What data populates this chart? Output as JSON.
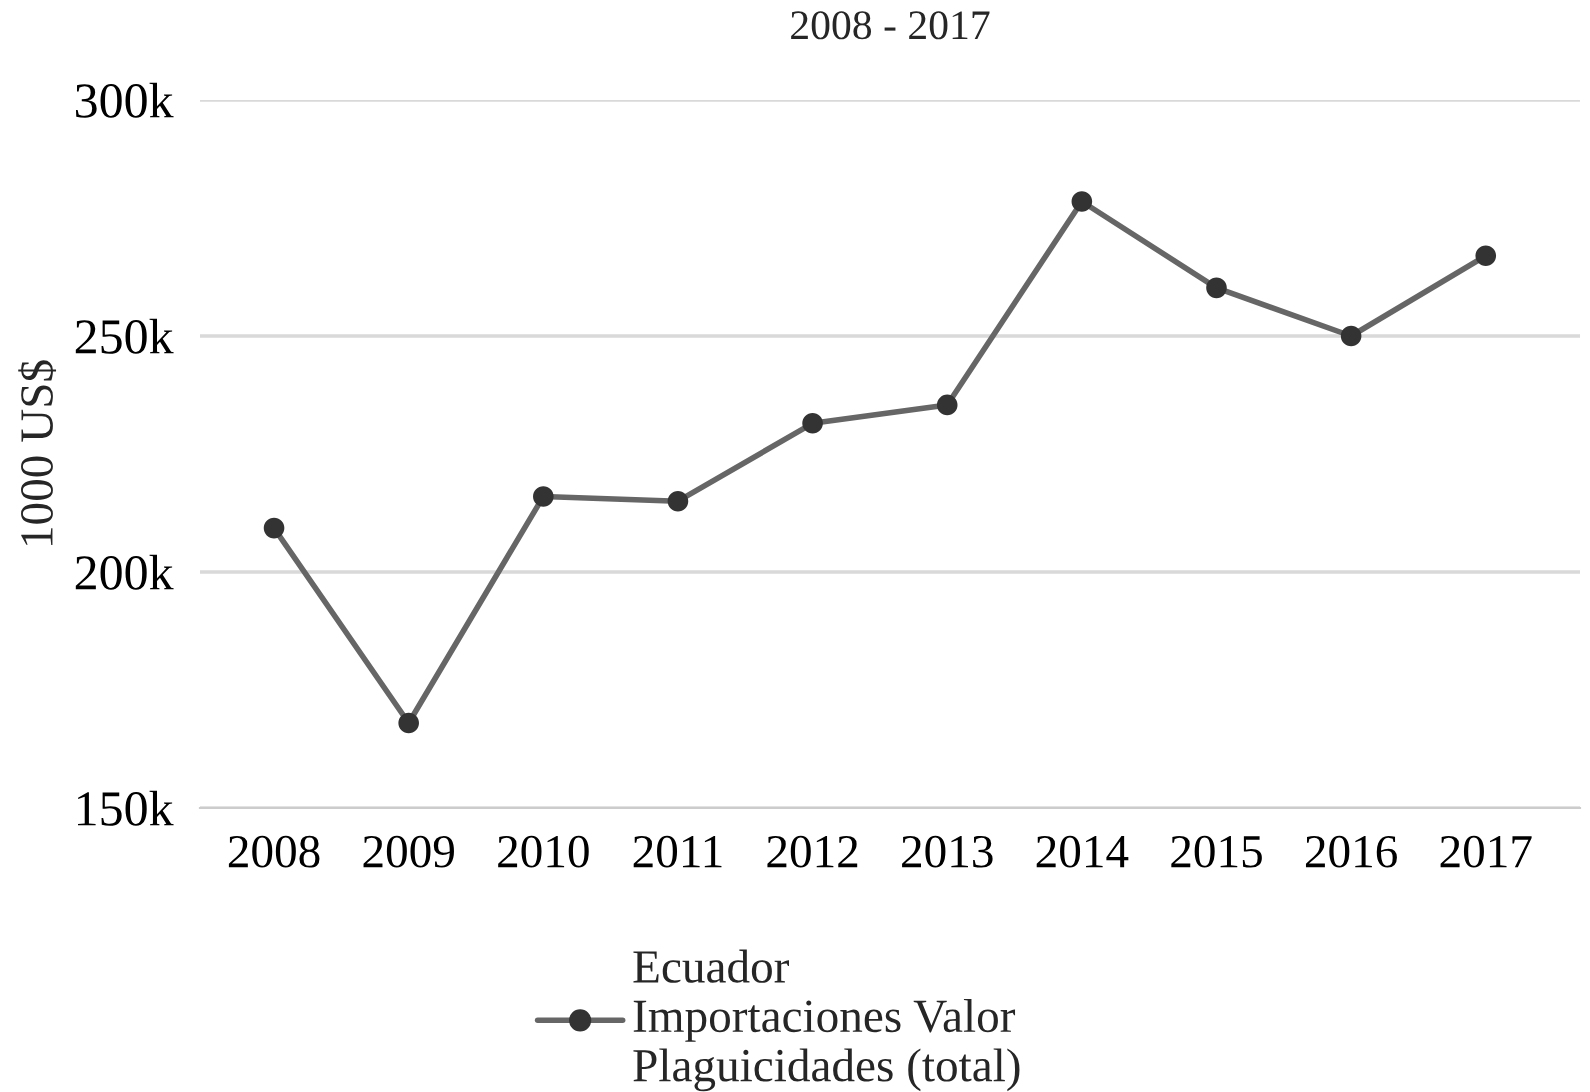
{
  "chart_data": {
    "type": "line",
    "title": "2008 - 2017",
    "ylabel": "1000 US$",
    "categories": [
      "2008",
      "2009",
      "2010",
      "2011",
      "2012",
      "2013",
      "2014",
      "2015",
      "2016",
      "2017"
    ],
    "series": [
      {
        "name": "Ecuador\nImportaciones Valor\nPlaguicidades (total)",
        "color": "#666666",
        "values": [
          209.3,
          168,
          216,
          215,
          231.5,
          235.4,
          278.5,
          260.2,
          250,
          267
        ]
      }
    ],
    "ylim": [
      150,
      300
    ],
    "yticks": [
      {
        "value": 150,
        "label": "150k"
      },
      {
        "value": 200,
        "label": "200k"
      },
      {
        "value": 250,
        "label": "250k"
      },
      {
        "value": 300,
        "label": "300k"
      }
    ],
    "grid": "y",
    "legend": "bottom",
    "marker": "circle",
    "line_style": "solid"
  }
}
